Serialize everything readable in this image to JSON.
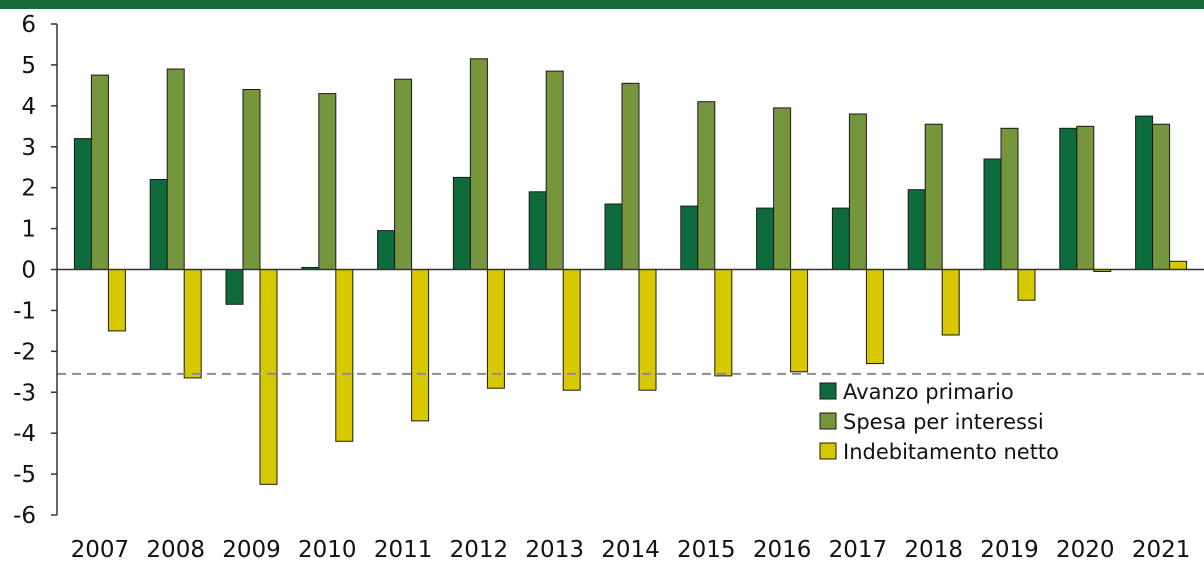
{
  "colors": {
    "top_band": "#1a6b3a",
    "avanzo": "#0e6b3c",
    "spesa": "#76963d",
    "indebitamento": "#d8c800",
    "reference_line": "#8c8c8c",
    "axis": "#333333"
  },
  "chart_data": {
    "type": "bar",
    "categories": [
      "2007",
      "2008",
      "2009",
      "2010",
      "2011",
      "2012",
      "2013",
      "2014",
      "2015",
      "2016",
      "2017",
      "2018",
      "2019",
      "2020",
      "2021"
    ],
    "series": [
      {
        "name": "Avanzo primario",
        "values": [
          3.2,
          2.2,
          -0.85,
          0.05,
          0.95,
          2.25,
          1.9,
          1.6,
          1.55,
          1.5,
          1.5,
          1.95,
          2.7,
          3.45,
          3.75
        ]
      },
      {
        "name": "Spesa per interessi",
        "values": [
          4.75,
          4.9,
          4.4,
          4.3,
          4.65,
          5.15,
          4.85,
          4.55,
          4.1,
          3.95,
          3.8,
          3.55,
          3.45,
          3.5,
          3.55
        ]
      },
      {
        "name": "Indebitamento netto",
        "values": [
          -1.5,
          -2.65,
          -5.25,
          -4.2,
          -3.7,
          -2.9,
          -2.95,
          -2.95,
          -2.6,
          -2.5,
          -2.3,
          -1.6,
          -0.75,
          -0.05,
          0.2
        ]
      }
    ],
    "reference_line": {
      "value": -2.55,
      "style": "dashed"
    },
    "ylim": [
      -6,
      6
    ],
    "yticks": [
      "6",
      "5",
      "4",
      "3",
      "2",
      "1",
      "0",
      "-1",
      "-2",
      "-3",
      "-4",
      "-5",
      "-6"
    ],
    "xlabel": "",
    "ylabel": "",
    "title": "",
    "grid": false,
    "legend": {
      "placement": "bottom-right",
      "entries": [
        "Avanzo primario",
        "Spesa per interessi",
        "Indebitamento netto"
      ]
    }
  }
}
